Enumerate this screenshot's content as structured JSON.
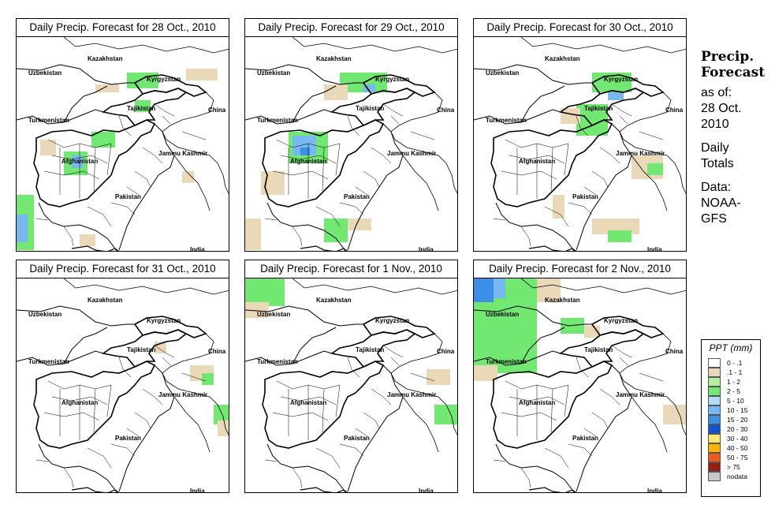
{
  "panels": [
    {
      "title": "Daily Precip. Forecast for  28 Oct., 2010",
      "layer": "l1"
    },
    {
      "title": "Daily Precip. Forecast for  29 Oct., 2010",
      "layer": "l2"
    },
    {
      "title": "Daily Precip. Forecast for  30 Oct., 2010",
      "layer": "l3"
    },
    {
      "title": "Daily Precip. Forecast for  31 Oct., 2010",
      "layer": "l4"
    },
    {
      "title": "Daily Precip. Forecast for  1 Nov., 2010",
      "layer": "l5"
    },
    {
      "title": "Daily Precip. Forecast for  2 Nov., 2010",
      "layer": "l6"
    }
  ],
  "map_labels": {
    "uzbekistan": "Uzbekistan",
    "kazakhstan": "Kazakhstan",
    "kyrgyzstan": "Kyrgyzstan",
    "tajikistan": "Tajikistan",
    "turkmenistan": "Turkmenistan",
    "china": "China",
    "afghanistan": "Afghanistan",
    "jammu_kashmir": "Jammu Kashmir",
    "pakistan": "Pakistan",
    "india": "India"
  },
  "sidebar": {
    "title_line1": "Precip.",
    "title_line2": "Forecast",
    "asof_line1": "as of:",
    "asof_line2": "28 Oct.",
    "asof_line3": "2010",
    "totals_line1": "Daily",
    "totals_line2": "Totals",
    "data_line1": "Data:",
    "data_line2": "NOAA-",
    "data_line3": "GFS"
  },
  "legend": {
    "title": "PPT (mm)",
    "items": [
      {
        "label": "0 - .1",
        "color": "#ffffff"
      },
      {
        "label": ".1 - 1",
        "color": "#ead9b8"
      },
      {
        "label": "1 - 2",
        "color": "#b4f0a0"
      },
      {
        "label": "2 - 5",
        "color": "#72e772"
      },
      {
        "label": "5 - 10",
        "color": "#b2dcf5"
      },
      {
        "label": "10 - 15",
        "color": "#78b8f0"
      },
      {
        "label": "15 - 20",
        "color": "#3c8ee6"
      },
      {
        "label": "20 - 30",
        "color": "#1450d2"
      },
      {
        "label": "30 - 40",
        "color": "#ffe873"
      },
      {
        "label": "40 - 50",
        "color": "#ffb400"
      },
      {
        "label": "50 - 75",
        "color": "#e85a1e"
      },
      {
        "label": "> 75",
        "color": "#961e14"
      },
      {
        "label": "nodata",
        "color": "#c8c8c8"
      }
    ]
  }
}
